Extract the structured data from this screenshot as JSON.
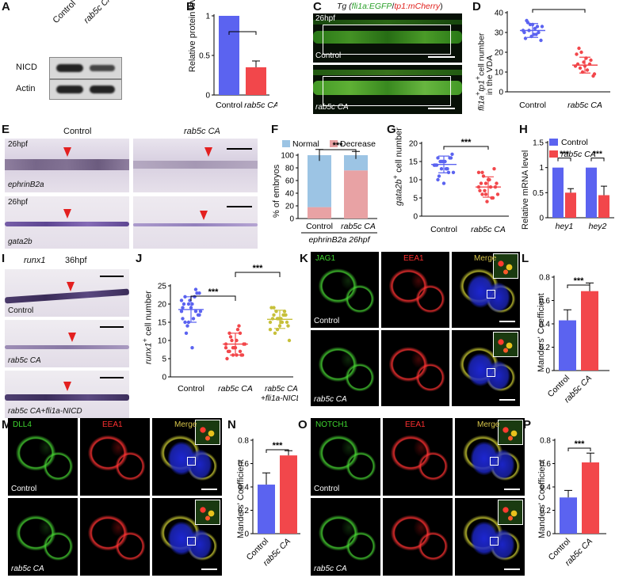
{
  "panels": {
    "A": {
      "letter": "A",
      "lanes": [
        "Control",
        "rab5c CA"
      ],
      "bands": [
        "NICD",
        "Actin"
      ]
    },
    "B": {
      "letter": "B",
      "ylabel": "Relative protein level",
      "sig": "***"
    },
    "C": {
      "letter": "C",
      "title_prefix": "Tg (",
      "title_g": "fli1a:EGFP",
      "title_sep": "/",
      "title_r": "tp1:mCherry",
      "title_suffix": ")",
      "stage": "26hpf",
      "conds": [
        "Control",
        "rab5c CA"
      ]
    },
    "D": {
      "letter": "D",
      "ylabel_a": "fli1a",
      "ylabel_b": "+",
      "ylabel_c": "tp1",
      "ylabel_d": "+",
      "ylabel_e": "cell number",
      "ylabel_f": "in the VDA",
      "sig": "***"
    },
    "E": {
      "letter": "E",
      "cols": [
        "Control",
        "rab5c CA"
      ],
      "stage": "26hpf",
      "genes": [
        "ephrinB2a",
        "gata2b"
      ]
    },
    "F": {
      "letter": "F",
      "ylabel": "% of embryos",
      "legend": [
        "Normal",
        "Decrease"
      ],
      "sig": "***",
      "footer": "ephrinB2a 26hpf"
    },
    "G": {
      "letter": "G",
      "ylabel_a": "gata2b",
      "ylabel_b": "+",
      "ylabel_c": " cell number",
      "sig": "***"
    },
    "H": {
      "letter": "H",
      "ylabel": "Relative mRNA level",
      "legend": [
        "Control",
        "rab5c CA"
      ],
      "sig": "***",
      "genes": [
        "hey1",
        "hey2"
      ]
    },
    "I": {
      "letter": "I",
      "gene": "runx1",
      "stage": "36hpf",
      "conds": [
        "Control",
        "rab5c CA",
        "rab5c CA+fli1a-NICD"
      ]
    },
    "J": {
      "letter": "J",
      "ylabel_a": "runx1",
      "ylabel_b": "+",
      "ylabel_c": " cell number",
      "sig": "***"
    },
    "K": {
      "letter": "K",
      "channels": [
        "JAG1",
        "EEA1",
        "Merge"
      ],
      "conds": [
        "Control",
        "rab5c CA"
      ]
    },
    "L": {
      "letter": "L",
      "ylabel": "Manders' Coefficient",
      "sig": "***"
    },
    "M": {
      "letter": "M",
      "channels": [
        "DLL4",
        "EEA1",
        "Merge"
      ],
      "conds": [
        "Control",
        "rab5c CA"
      ]
    },
    "N": {
      "letter": "N",
      "ylabel": "Manders' Coefficient",
      "sig": "***"
    },
    "O": {
      "letter": "O",
      "channels": [
        "NOTCH1",
        "EEA1",
        "Merge"
      ],
      "conds": [
        "Control",
        "rab5c CA"
      ]
    },
    "P": {
      "letter": "P",
      "ylabel": "Manders' Coefficient",
      "sig": "***"
    }
  },
  "colors": {
    "blue": "#5b63f0",
    "red": "#f2474b",
    "normal": "#9cc4e4",
    "decrease": "#e8a2a4",
    "green": "#3fd62f",
    "redch": "#ff3030"
  },
  "chart_data": [
    {
      "id": "B",
      "type": "bar",
      "categories": [
        "Control",
        "rab5c CA"
      ],
      "values": [
        1.0,
        0.35
      ],
      "errors": [
        0,
        0.08
      ],
      "ylim": [
        0,
        1.0
      ],
      "yticks": [
        0,
        0.5,
        1.0
      ],
      "ylabel": "Relative protein level"
    },
    {
      "id": "D",
      "type": "scatter",
      "categories": [
        "Control",
        "rab5c CA"
      ],
      "ylim": [
        0,
        40
      ],
      "yticks": [
        0,
        10,
        20,
        30,
        40
      ],
      "points": [
        [
          31,
          36,
          34,
          29,
          33,
          26,
          30,
          35,
          28,
          32,
          30,
          33,
          27,
          31,
          34,
          29
        ],
        [
          13,
          22,
          10,
          17,
          14,
          8,
          19,
          12,
          15,
          11,
          16,
          9,
          14,
          20,
          13
        ]
      ],
      "means": [
        31,
        13.5
      ],
      "sd": [
        3.5,
        4
      ]
    },
    {
      "id": "F",
      "type": "bar",
      "stacked": true,
      "categories": [
        "Control",
        "rab5c CA"
      ],
      "ylim": [
        0,
        100
      ],
      "yticks": [
        0,
        20,
        40,
        60,
        80,
        100
      ],
      "series": [
        {
          "name": "Decrease",
          "values": [
            18,
            76
          ]
        },
        {
          "name": "Normal",
          "values": [
            82,
            24
          ]
        }
      ],
      "errors": [
        9,
        6
      ]
    },
    {
      "id": "G",
      "type": "scatter",
      "categories": [
        "Control",
        "rab5c CA"
      ],
      "ylim": [
        0,
        20
      ],
      "yticks": [
        0,
        5,
        10,
        15,
        20
      ],
      "points": [
        [
          14,
          16,
          13,
          15,
          12,
          17,
          14,
          11,
          15,
          13,
          16,
          12,
          14,
          15,
          9,
          13,
          16,
          14,
          10,
          15
        ],
        [
          8,
          12,
          6,
          10,
          5,
          9,
          7,
          11,
          4,
          8,
          13,
          6,
          9,
          7,
          10,
          5,
          8,
          12,
          6,
          9
        ]
      ],
      "means": [
        14.2,
        8
      ],
      "sd": [
        2.3,
        2.8
      ]
    },
    {
      "id": "H",
      "type": "bar",
      "categories": [
        "hey1",
        "hey2"
      ],
      "ylim": [
        0,
        1.5
      ],
      "yticks": [
        0,
        0.5,
        1.0,
        1.5
      ],
      "series": [
        {
          "name": "Control",
          "values": [
            1.0,
            1.0
          ]
        },
        {
          "name": "rab5c CA",
          "values": [
            0.5,
            0.45
          ]
        }
      ],
      "errors": [
        [
          0,
          0
        ],
        [
          0.08,
          0.18
        ]
      ]
    },
    {
      "id": "J",
      "type": "scatter",
      "categories": [
        "Control",
        "rab5c CA",
        "rab5c CA\n+fli1a-NICD"
      ],
      "ylim": [
        0,
        25
      ],
      "yticks": [
        0,
        5,
        10,
        15,
        20,
        25
      ],
      "points": [
        [
          18,
          22,
          15,
          20,
          24,
          17,
          19,
          12,
          21,
          16,
          23,
          18,
          20,
          14,
          19,
          22,
          17,
          21,
          15,
          20,
          8,
          18,
          23,
          16
        ],
        [
          8,
          12,
          6,
          10,
          7,
          9,
          5,
          11,
          8,
          13,
          6,
          9,
          7,
          10,
          8,
          14,
          6,
          9,
          7,
          8,
          6,
          12
        ],
        [
          15,
          17,
          13,
          16,
          18,
          14,
          19,
          12,
          16,
          15,
          17,
          10,
          16,
          18,
          14,
          17,
          15,
          13,
          19,
          16,
          15,
          17
        ]
      ],
      "means": [
        18.5,
        9,
        15.8
      ],
      "sd": [
        3.5,
        3,
        2.5
      ]
    },
    {
      "id": "L",
      "type": "bar",
      "categories": [
        "Control",
        "rab5c CA"
      ],
      "values": [
        0.43,
        0.68
      ],
      "errors": [
        0.09,
        0.07
      ],
      "ylim": [
        0,
        0.8
      ],
      "yticks": [
        0,
        0.2,
        0.4,
        0.6,
        0.8
      ],
      "ylabel": "Manders' Coefficient"
    },
    {
      "id": "N",
      "type": "bar",
      "categories": [
        "Control",
        "rab5c CA"
      ],
      "values": [
        0.42,
        0.67
      ],
      "errors": [
        0.1,
        0.04
      ],
      "ylim": [
        0,
        0.8
      ],
      "yticks": [
        0,
        0.2,
        0.4,
        0.6,
        0.8
      ],
      "ylabel": "Manders' Coefficient"
    },
    {
      "id": "P",
      "type": "bar",
      "categories": [
        "Control",
        "rab5c CA"
      ],
      "values": [
        0.31,
        0.61
      ],
      "errors": [
        0.06,
        0.08
      ],
      "ylim": [
        0,
        0.8
      ],
      "yticks": [
        0,
        0.2,
        0.4,
        0.6,
        0.8
      ],
      "ylabel": "Manders' Coefficient"
    }
  ]
}
